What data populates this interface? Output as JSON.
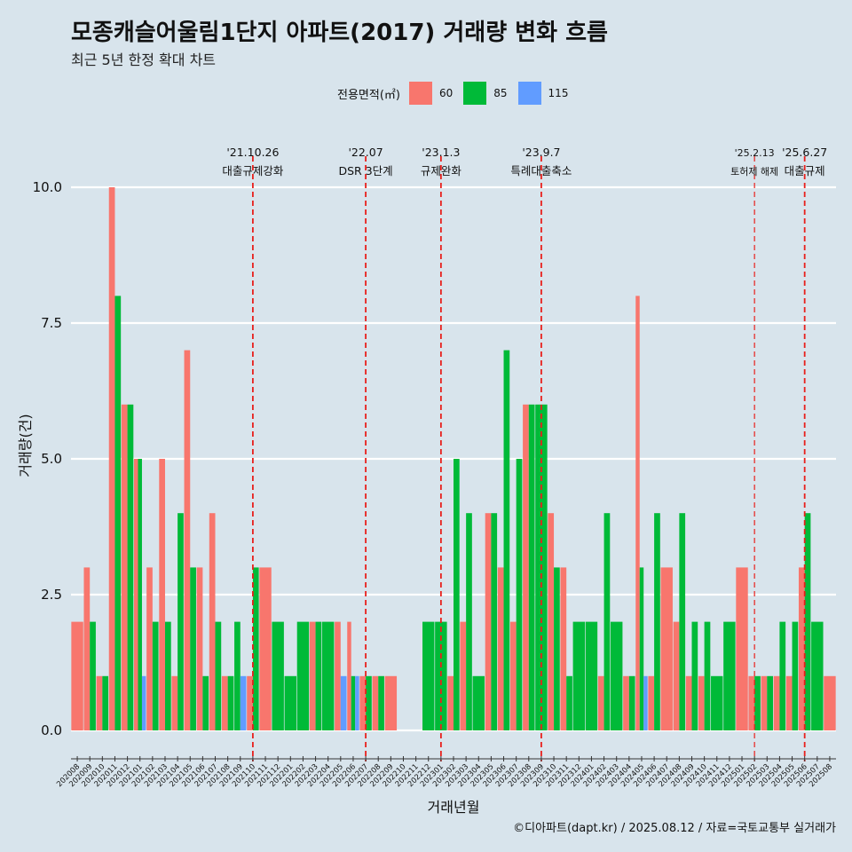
{
  "title": "모종캐슬어울림1단지 아파트(2017) 거래량 변화 흐름",
  "subtitle": "최근 5년 한정 확대 차트",
  "legend": {
    "title": "전용면적(㎡)",
    "items": [
      {
        "label": "60",
        "color": "#f8766d"
      },
      {
        "label": "85",
        "color": "#00ba38"
      },
      {
        "label": "115",
        "color": "#619cff"
      }
    ]
  },
  "caption": "©디아파트(dapt.kr) / 2025.08.12 / 자료=국토교통부 실거래가",
  "chart_data": {
    "type": "bar",
    "title": "모종캐슬어울림1단지 아파트(2017) 거래량 변화 흐름",
    "xlabel": "거래년월",
    "ylabel": "거래량(건)",
    "ylim": [
      0,
      10
    ],
    "yticks": [
      "0.0",
      "2.5",
      "5.0",
      "7.5",
      "10.0"
    ],
    "grid": true,
    "legend_position": "top",
    "categories": [
      "202008",
      "202009",
      "202010",
      "202011",
      "202012",
      "202101",
      "202102",
      "202103",
      "202104",
      "202105",
      "202106",
      "202107",
      "202108",
      "202109",
      "202110",
      "202111",
      "202112",
      "202201",
      "202202",
      "202203",
      "202204",
      "202205",
      "202206",
      "202207",
      "202208",
      "202209",
      "202210",
      "202211",
      "202212",
      "202301",
      "202302",
      "202303",
      "202304",
      "202305",
      "202306",
      "202307",
      "202308",
      "202309",
      "202310",
      "202311",
      "202312",
      "202401",
      "202402",
      "202403",
      "202404",
      "202405",
      "202406",
      "202407",
      "202408",
      "202409",
      "202410",
      "202411",
      "202412",
      "202501",
      "202502",
      "202503",
      "202504",
      "202505",
      "202506",
      "202507",
      "202508"
    ],
    "series": [
      {
        "name": "60",
        "color": "#f8766d",
        "values": [
          2,
          3,
          1,
          10,
          6,
          5,
          3,
          5,
          1,
          7,
          3,
          4,
          1,
          0,
          1,
          3,
          0,
          0,
          0,
          2,
          0,
          2,
          2,
          1,
          1,
          1,
          0,
          0,
          0,
          0,
          1,
          2,
          0,
          4,
          3,
          2,
          6,
          0,
          4,
          3,
          0,
          0,
          1,
          0,
          1,
          8,
          1,
          3,
          2,
          1,
          1,
          0,
          0,
          3,
          1,
          1,
          1,
          1,
          3,
          0,
          1
        ]
      },
      {
        "name": "85",
        "color": "#00ba38",
        "values": [
          0,
          2,
          1,
          8,
          6,
          5,
          2,
          2,
          4,
          3,
          1,
          2,
          1,
          2,
          3,
          0,
          2,
          1,
          2,
          2,
          2,
          0,
          1,
          1,
          1,
          0,
          0,
          0,
          2,
          2,
          5,
          4,
          1,
          4,
          7,
          5,
          6,
          6,
          3,
          1,
          2,
          2,
          4,
          2,
          1,
          3,
          4,
          0,
          4,
          2,
          2,
          1,
          2,
          0,
          1,
          1,
          2,
          2,
          4,
          2,
          0
        ]
      },
      {
        "name": "115",
        "color": "#619cff",
        "values": [
          0,
          0,
          0,
          0,
          0,
          1,
          0,
          0,
          0,
          0,
          0,
          0,
          0,
          1,
          0,
          0,
          0,
          0,
          0,
          0,
          0,
          1,
          1,
          0,
          0,
          0,
          0,
          0,
          0,
          0,
          0,
          0,
          0,
          0,
          0,
          0,
          0,
          0,
          0,
          0,
          0,
          0,
          0,
          0,
          0,
          1,
          0,
          0,
          0,
          0,
          0,
          0,
          0,
          0,
          0,
          0,
          0,
          0,
          0,
          0,
          0
        ]
      }
    ],
    "annotations": [
      {
        "category": "202110",
        "date": "'21.10.26",
        "label": "대출규제강화"
      },
      {
        "category": "202207",
        "date": "'22.07",
        "label": "DSR 3단계"
      },
      {
        "category": "202301",
        "date": "'23.1.3",
        "label": "규제완화"
      },
      {
        "category": "202309",
        "date": "'23.9.7",
        "label": "특례대출축소"
      },
      {
        "category": "202502",
        "date": "'25.2.13",
        "label": "토허제 해제"
      },
      {
        "category": "202506",
        "date": "'25.6.27",
        "label": "대출규제"
      }
    ]
  }
}
